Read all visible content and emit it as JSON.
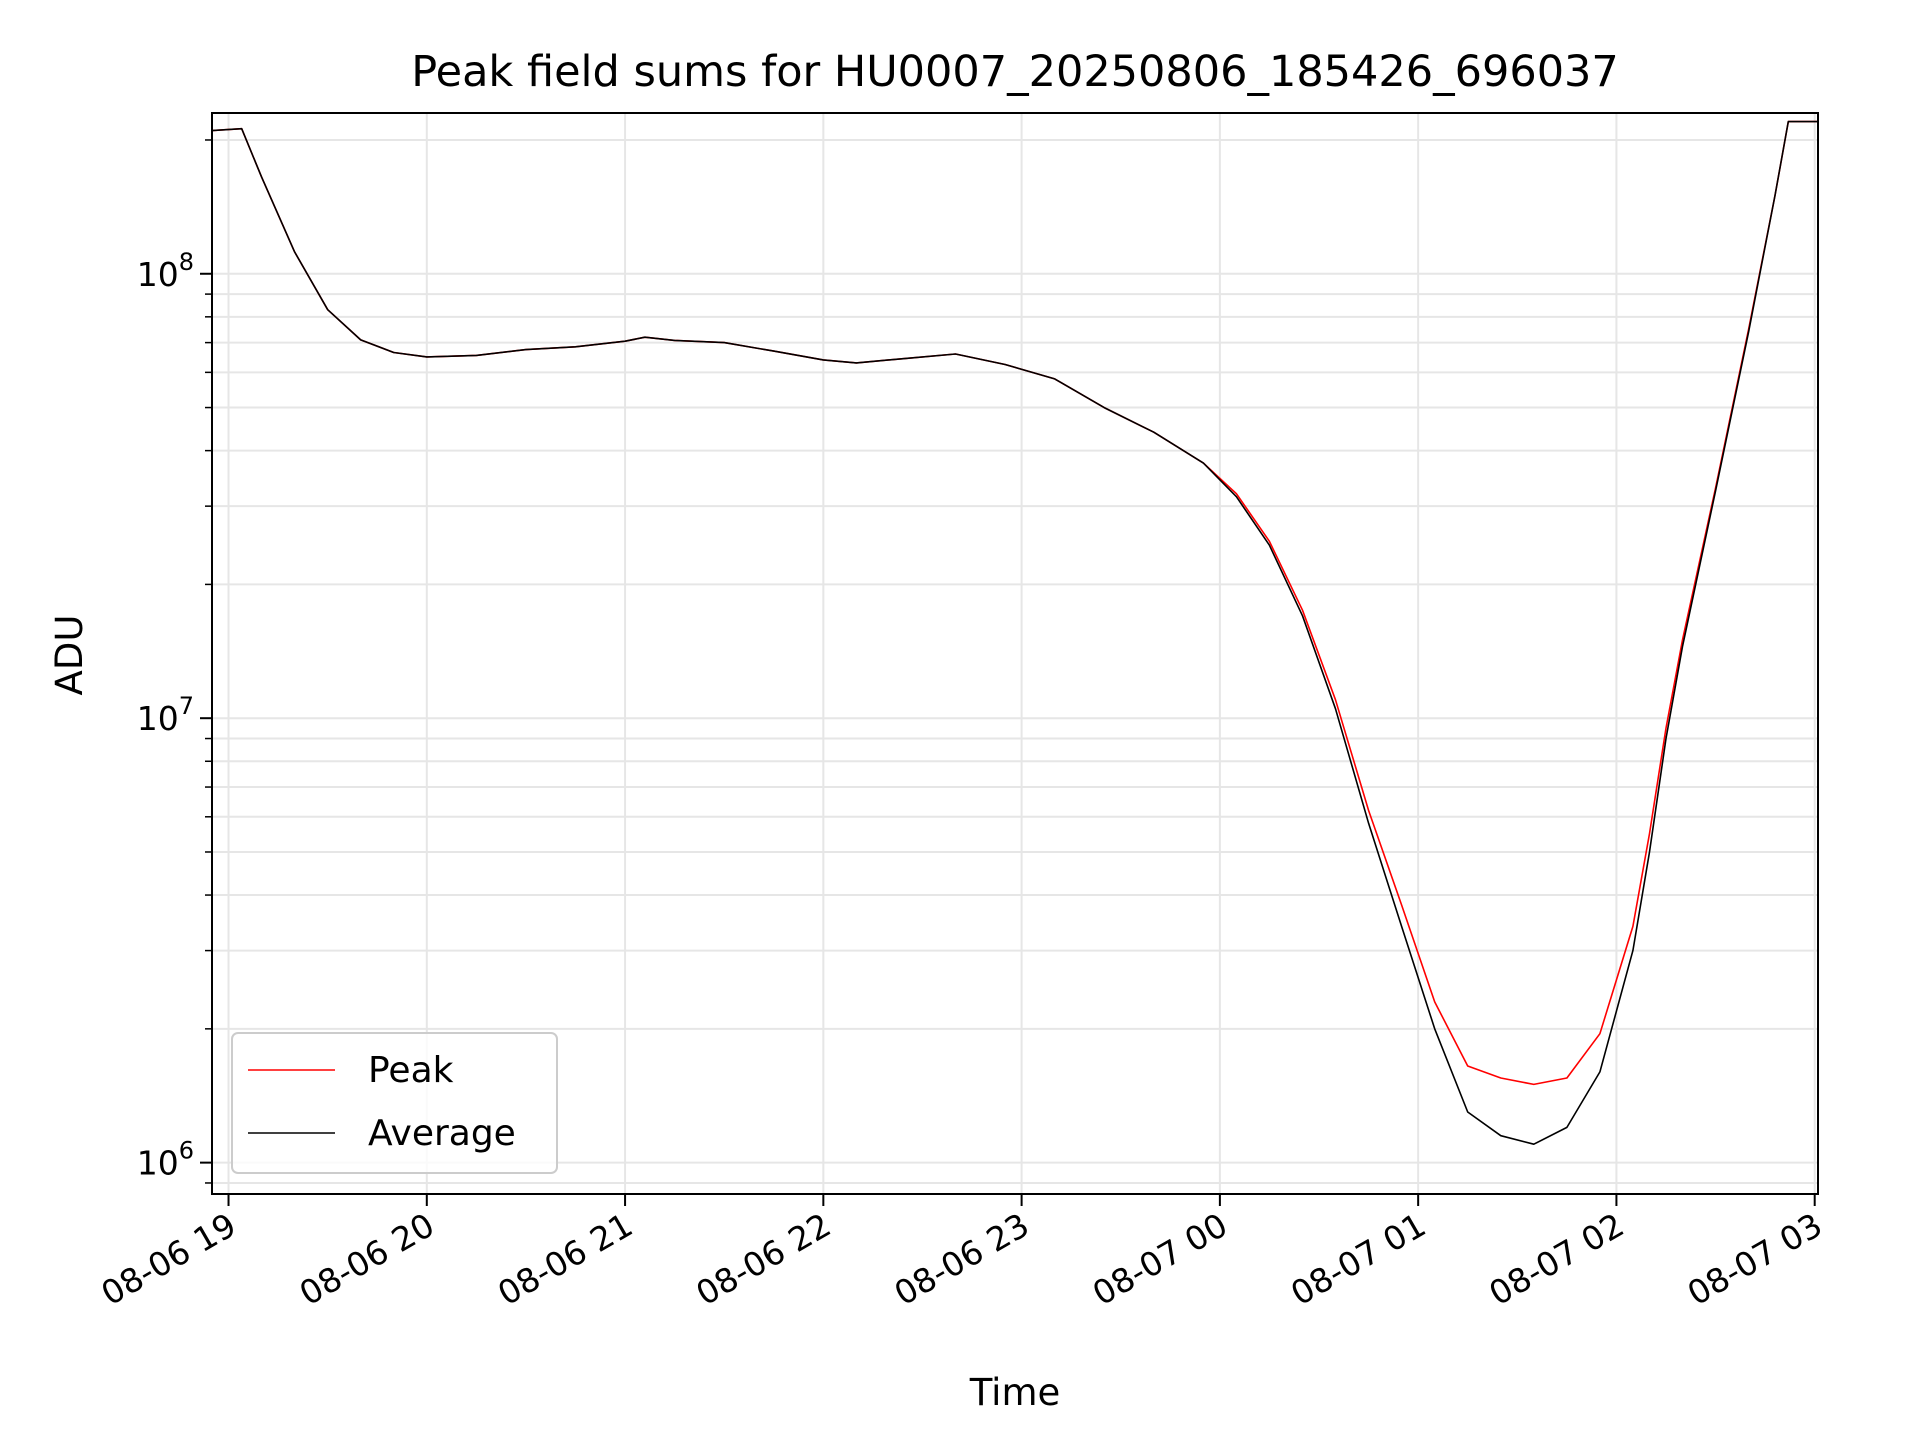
{
  "chart_data": {
    "type": "line",
    "title": "Peak field sums for HU0007_20250806_185426_696037",
    "xlabel": "Time",
    "ylabel": "ADU",
    "yscale": "log",
    "xlim": [
      "2025-08-06T18:55",
      "2025-08-07T03:01"
    ],
    "ylim": [
      850000,
      230000000
    ],
    "grid": true,
    "legend_position": "lower-left",
    "x_ticks": [
      {
        "t": "2025-08-06T19:00",
        "label": "08-06 19"
      },
      {
        "t": "2025-08-06T20:00",
        "label": "08-06 20"
      },
      {
        "t": "2025-08-06T21:00",
        "label": "08-06 21"
      },
      {
        "t": "2025-08-06T22:00",
        "label": "08-06 22"
      },
      {
        "t": "2025-08-06T23:00",
        "label": "08-06 23"
      },
      {
        "t": "2025-08-07T00:00",
        "label": "08-07 00"
      },
      {
        "t": "2025-08-07T01:00",
        "label": "08-07 01"
      },
      {
        "t": "2025-08-07T02:00",
        "label": "08-07 02"
      },
      {
        "t": "2025-08-07T03:00",
        "label": "08-07 03"
      }
    ],
    "y_ticks": [
      {
        "value": 1000000,
        "base": "10",
        "exp": "6"
      },
      {
        "value": 10000000,
        "base": "10",
        "exp": "7"
      },
      {
        "value": 100000000,
        "base": "10",
        "exp": "8"
      }
    ],
    "series": [
      {
        "name": "Peak",
        "color": "#ff0000",
        "points": [
          [
            "2025-08-06T18:55",
            210000000
          ],
          [
            "2025-08-06T19:04",
            212000000
          ],
          [
            "2025-08-06T19:10",
            165000000
          ],
          [
            "2025-08-06T19:20",
            112000000
          ],
          [
            "2025-08-06T19:30",
            83000000
          ],
          [
            "2025-08-06T19:40",
            71000000
          ],
          [
            "2025-08-06T19:50",
            66500000
          ],
          [
            "2025-08-06T20:00",
            65000000
          ],
          [
            "2025-08-06T20:15",
            65500000
          ],
          [
            "2025-08-06T20:30",
            67500000
          ],
          [
            "2025-08-06T20:45",
            68500000
          ],
          [
            "2025-08-06T21:00",
            70500000
          ],
          [
            "2025-08-06T21:06",
            72000000
          ],
          [
            "2025-08-06T21:15",
            70800000
          ],
          [
            "2025-08-06T21:30",
            70000000
          ],
          [
            "2025-08-06T21:45",
            67000000
          ],
          [
            "2025-08-06T22:00",
            64000000
          ],
          [
            "2025-08-06T22:10",
            63000000
          ],
          [
            "2025-08-06T22:25",
            64500000
          ],
          [
            "2025-08-06T22:40",
            66000000
          ],
          [
            "2025-08-06T22:55",
            62500000
          ],
          [
            "2025-08-06T23:10",
            58000000
          ],
          [
            "2025-08-06T23:25",
            50000000
          ],
          [
            "2025-08-06T23:40",
            44000000
          ],
          [
            "2025-08-06T23:55",
            37500000
          ],
          [
            "2025-08-07T00:05",
            32000000
          ],
          [
            "2025-08-07T00:15",
            25000000
          ],
          [
            "2025-08-07T00:25",
            17500000
          ],
          [
            "2025-08-07T00:35",
            11000000
          ],
          [
            "2025-08-07T00:45",
            6200000
          ],
          [
            "2025-08-07T00:55",
            3800000
          ],
          [
            "2025-08-07T01:05",
            2300000
          ],
          [
            "2025-08-07T01:15",
            1650000
          ],
          [
            "2025-08-07T01:25",
            1550000
          ],
          [
            "2025-08-07T01:35",
            1500000
          ],
          [
            "2025-08-07T01:45",
            1550000
          ],
          [
            "2025-08-07T01:55",
            1950000
          ],
          [
            "2025-08-07T02:05",
            3400000
          ],
          [
            "2025-08-07T02:10",
            5500000
          ],
          [
            "2025-08-07T02:15",
            9500000
          ],
          [
            "2025-08-07T02:20",
            15000000
          ],
          [
            "2025-08-07T02:30",
            33000000
          ],
          [
            "2025-08-07T02:40",
            75000000
          ],
          [
            "2025-08-07T02:48",
            150000000
          ],
          [
            "2025-08-07T02:52",
            220000000
          ],
          [
            "2025-08-07T03:01",
            220000000
          ]
        ]
      },
      {
        "name": "Average",
        "color": "#000000",
        "points": [
          [
            "2025-08-06T18:55",
            210000000
          ],
          [
            "2025-08-06T19:04",
            212000000
          ],
          [
            "2025-08-06T19:10",
            165000000
          ],
          [
            "2025-08-06T19:20",
            112000000
          ],
          [
            "2025-08-06T19:30",
            83000000
          ],
          [
            "2025-08-06T19:40",
            71000000
          ],
          [
            "2025-08-06T19:50",
            66500000
          ],
          [
            "2025-08-06T20:00",
            65000000
          ],
          [
            "2025-08-06T20:15",
            65500000
          ],
          [
            "2025-08-06T20:30",
            67500000
          ],
          [
            "2025-08-06T20:45",
            68500000
          ],
          [
            "2025-08-06T21:00",
            70500000
          ],
          [
            "2025-08-06T21:06",
            72000000
          ],
          [
            "2025-08-06T21:15",
            70800000
          ],
          [
            "2025-08-06T21:30",
            70000000
          ],
          [
            "2025-08-06T21:45",
            67000000
          ],
          [
            "2025-08-06T22:00",
            64000000
          ],
          [
            "2025-08-06T22:10",
            63000000
          ],
          [
            "2025-08-06T22:25",
            64500000
          ],
          [
            "2025-08-06T22:40",
            66000000
          ],
          [
            "2025-08-06T22:55",
            62500000
          ],
          [
            "2025-08-06T23:10",
            58000000
          ],
          [
            "2025-08-06T23:25",
            50000000
          ],
          [
            "2025-08-06T23:40",
            44000000
          ],
          [
            "2025-08-06T23:55",
            37500000
          ],
          [
            "2025-08-07T00:05",
            31500000
          ],
          [
            "2025-08-07T00:15",
            24500000
          ],
          [
            "2025-08-07T00:25",
            17000000
          ],
          [
            "2025-08-07T00:35",
            10500000
          ],
          [
            "2025-08-07T00:45",
            5800000
          ],
          [
            "2025-08-07T00:55",
            3400000
          ],
          [
            "2025-08-07T01:05",
            2000000
          ],
          [
            "2025-08-07T01:15",
            1300000
          ],
          [
            "2025-08-07T01:25",
            1150000
          ],
          [
            "2025-08-07T01:35",
            1100000
          ],
          [
            "2025-08-07T01:45",
            1200000
          ],
          [
            "2025-08-07T01:55",
            1600000
          ],
          [
            "2025-08-07T02:05",
            3000000
          ],
          [
            "2025-08-07T02:10",
            5000000
          ],
          [
            "2025-08-07T02:15",
            9000000
          ],
          [
            "2025-08-07T02:20",
            14500000
          ],
          [
            "2025-08-07T02:30",
            32500000
          ],
          [
            "2025-08-07T02:40",
            74000000
          ],
          [
            "2025-08-07T02:48",
            150000000
          ],
          [
            "2025-08-07T02:52",
            220000000
          ],
          [
            "2025-08-07T03:01",
            220000000
          ]
        ]
      }
    ]
  }
}
